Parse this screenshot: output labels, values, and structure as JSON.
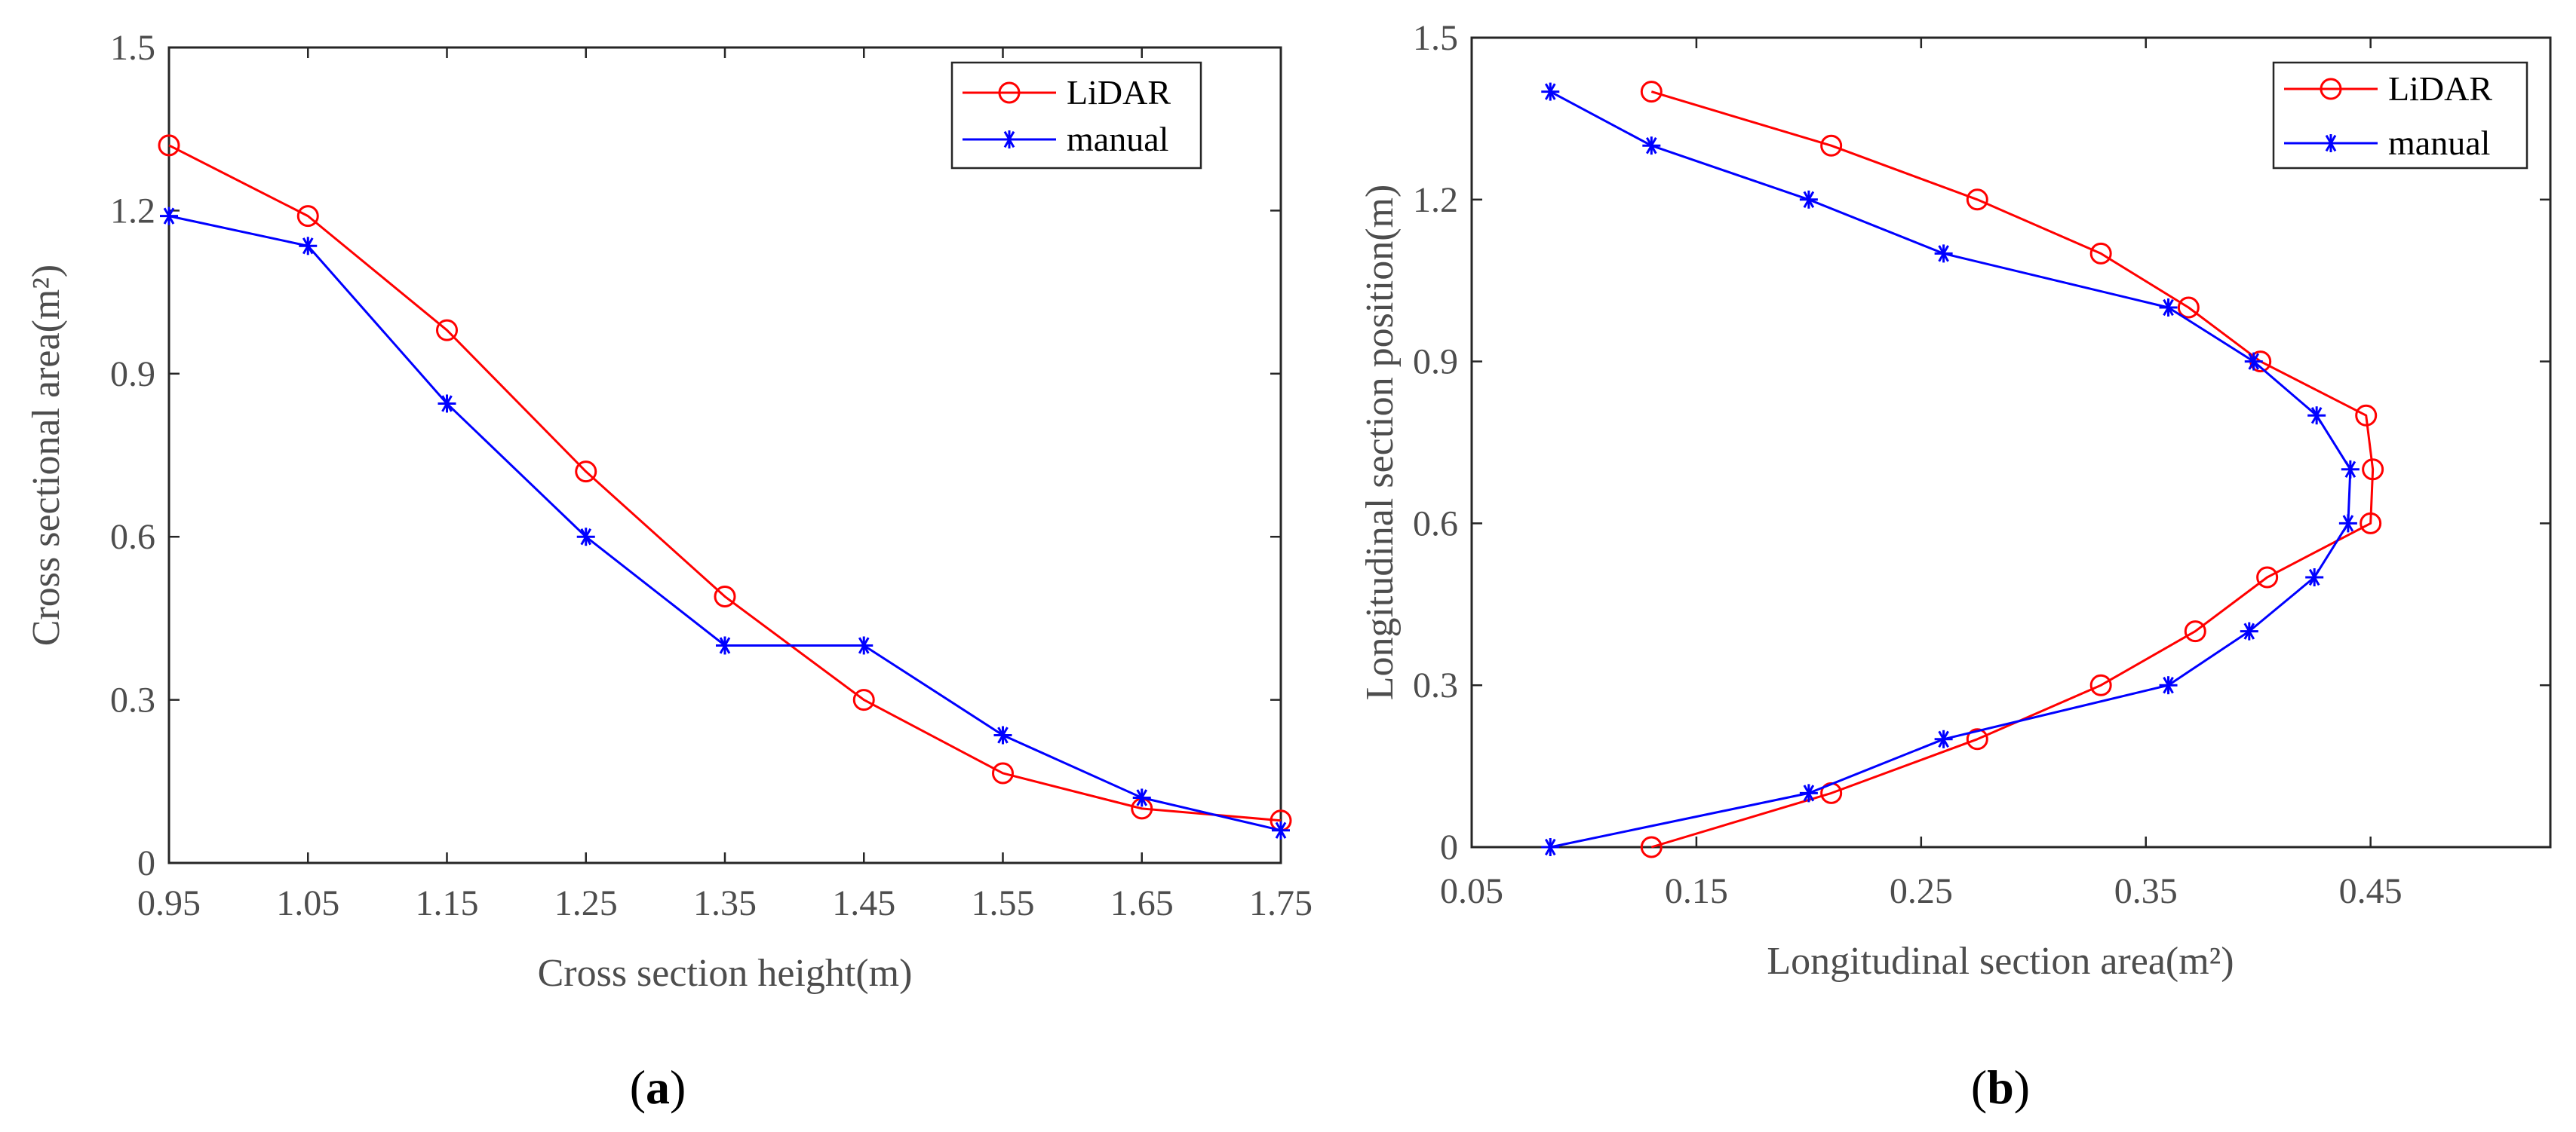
{
  "chart_data": [
    {
      "type": "line",
      "panel_label": "a",
      "title": "",
      "xlabel": "Cross section height(m)",
      "ylabel": "Cross sectional area(m²)",
      "xlim": [
        0.95,
        1.75
      ],
      "ylim": [
        0,
        1.5
      ],
      "xticks": [
        "0.95",
        "1.05",
        "1.15",
        "1.25",
        "1.35",
        "1.45",
        "1.55",
        "1.65",
        "1.75"
      ],
      "yticks": [
        "0",
        "0.3",
        "0.6",
        "0.9",
        "1.2",
        "1.5"
      ],
      "legend_position": "top-right",
      "series": [
        {
          "name": "LiDAR",
          "color": "#ff0000",
          "marker": "circle",
          "x": [
            0.95,
            1.05,
            1.15,
            1.25,
            1.35,
            1.45,
            1.55,
            1.65,
            1.75
          ],
          "y": [
            1.32,
            1.19,
            0.98,
            0.72,
            0.49,
            0.3,
            0.165,
            0.1,
            0.078
          ]
        },
        {
          "name": "manual",
          "color": "#0000ff",
          "marker": "asterisk",
          "x": [
            0.95,
            1.05,
            1.15,
            1.25,
            1.35,
            1.45,
            1.55,
            1.65,
            1.75
          ],
          "y": [
            1.19,
            1.135,
            0.845,
            0.6,
            0.4,
            0.4,
            0.235,
            0.12,
            0.06
          ]
        }
      ]
    },
    {
      "type": "line",
      "panel_label": "b",
      "title": "",
      "xlabel": "Longitudinal section area(m²)",
      "ylabel": "Longitudinal section position(m)",
      "xlim": [
        0.05,
        0.53
      ],
      "ylim": [
        0,
        1.5
      ],
      "xticks": [
        "0.05",
        "0.15",
        "0.25",
        "0.35",
        "0.45"
      ],
      "yticks": [
        "0",
        "0.3",
        "0.6",
        "0.9",
        "1.2",
        "1.5"
      ],
      "legend_position": "top-right",
      "series": [
        {
          "name": "LiDAR",
          "color": "#ff0000",
          "marker": "circle",
          "x": [
            0.13,
            0.21,
            0.275,
            0.33,
            0.372,
            0.404,
            0.45,
            0.451,
            0.448,
            0.401,
            0.369,
            0.33,
            0.275,
            0.21,
            0.13
          ],
          "y": [
            0,
            0.1,
            0.2,
            0.3,
            0.4,
            0.5,
            0.6,
            0.7,
            0.8,
            0.9,
            1.0,
            1.1,
            1.2,
            1.3,
            1.4
          ]
        },
        {
          "name": "manual",
          "color": "#0000ff",
          "marker": "asterisk",
          "x": [
            0.085,
            0.2,
            0.26,
            0.36,
            0.396,
            0.425,
            0.44,
            0.441,
            0.426,
            0.398,
            0.36,
            0.26,
            0.2,
            0.13,
            0.085
          ],
          "y": [
            0,
            0.1,
            0.2,
            0.3,
            0.4,
            0.5,
            0.6,
            0.7,
            0.8,
            0.9,
            1.0,
            1.1,
            1.2,
            1.3,
            1.4
          ]
        }
      ]
    }
  ]
}
